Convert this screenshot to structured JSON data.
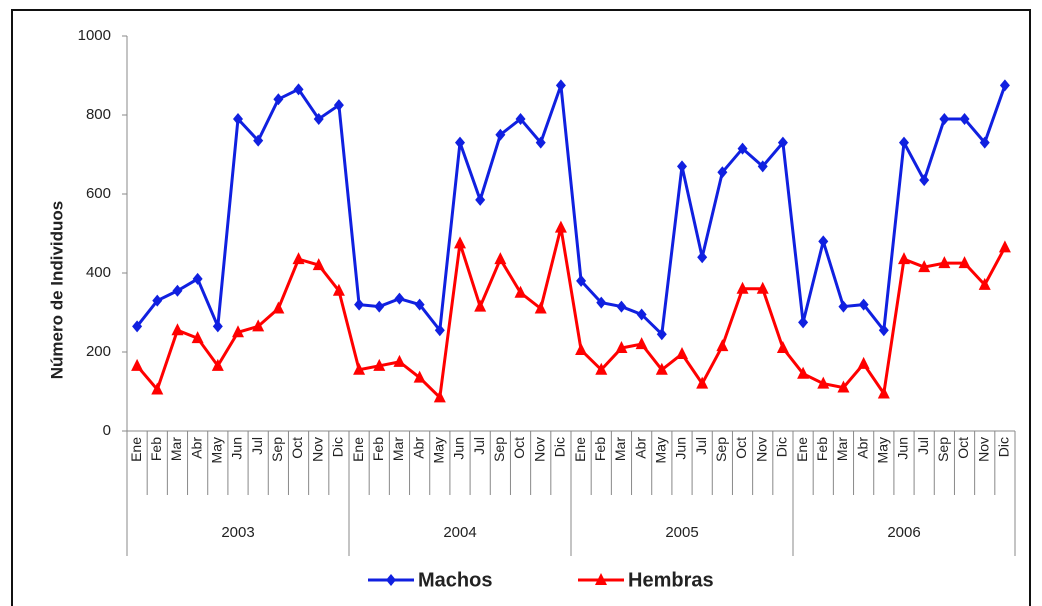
{
  "chart_data": {
    "type": "line",
    "y_label": "Número de Individuos",
    "ylim": [
      0,
      1000
    ],
    "yticks": [
      0,
      200,
      400,
      600,
      800,
      1000
    ],
    "grid": false,
    "legend": "bottom",
    "category_groups": [
      {
        "name": "2003",
        "categories": [
          "Ene",
          "Feb",
          "Mar",
          "Abr",
          "May",
          "Jun",
          "Jul",
          "Sep",
          "Oct",
          "Nov",
          "Dic"
        ]
      },
      {
        "name": "2004",
        "categories": [
          "Ene",
          "Feb",
          "Mar",
          "Abr",
          "May",
          "Jun",
          "Jul",
          "Sep",
          "Oct",
          "Nov",
          "Dic"
        ]
      },
      {
        "name": "2005",
        "categories": [
          "Ene",
          "Feb",
          "Mar",
          "Abr",
          "May",
          "Jun",
          "Jul",
          "Sep",
          "Oct",
          "Nov",
          "Dic"
        ]
      },
      {
        "name": "2006",
        "categories": [
          "Ene",
          "Feb",
          "Mar",
          "Abr",
          "May",
          "Jun",
          "Jul",
          "Sep",
          "Oct",
          "Nov",
          "Dic"
        ]
      }
    ],
    "series": [
      {
        "name": "Machos",
        "color": "#1020e0",
        "marker": "diamond",
        "values": [
          265,
          330,
          355,
          385,
          265,
          790,
          735,
          840,
          865,
          790,
          825,
          320,
          315,
          335,
          320,
          255,
          730,
          585,
          750,
          790,
          730,
          875,
          380,
          325,
          315,
          295,
          245,
          670,
          440,
          655,
          715,
          670,
          730,
          275,
          480,
          315,
          320,
          255,
          730,
          635,
          790,
          790,
          730,
          875
        ]
      },
      {
        "name": "Hembras",
        "color": "#ff0000",
        "marker": "triangle",
        "values": [
          165,
          105,
          255,
          235,
          165,
          250,
          265,
          310,
          435,
          420,
          355,
          155,
          165,
          175,
          135,
          85,
          475,
          315,
          435,
          350,
          310,
          515,
          205,
          155,
          210,
          220,
          155,
          195,
          120,
          215,
          360,
          360,
          210,
          145,
          120,
          110,
          170,
          95,
          435,
          415,
          425,
          425,
          370,
          465
        ]
      }
    ]
  }
}
